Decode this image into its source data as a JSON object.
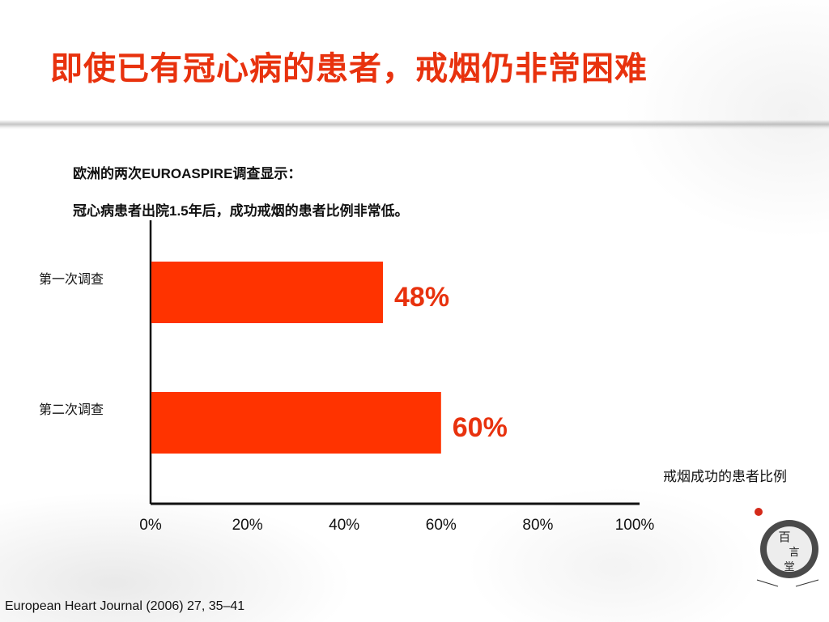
{
  "slide": {
    "title": "即使已有冠心病的患者，戒烟仍非常困难",
    "subtitle_line1": "欧洲的两次EUROASPIRE调查显示：",
    "subtitle_line2": "冠心病患者出院1.5年后，成功戒烟的患者比例非常低。",
    "citation": "European Heart Journal (2006) 27, 35–41",
    "logo_text": "百言堂"
  },
  "colors": {
    "accent": "#e8320e",
    "bar": "#ff3300",
    "axis": "#111111"
  },
  "chart_data": {
    "type": "bar",
    "orientation": "horizontal",
    "categories": [
      "第一次调查",
      "第二次调查"
    ],
    "values": [
      48,
      60
    ],
    "data_labels": [
      "48%",
      "60%"
    ],
    "xlabel": "戒烟成功的患者比例",
    "xlim": [
      0,
      100
    ],
    "xticks": [
      0,
      20,
      40,
      60,
      80,
      100
    ],
    "tick_labels": [
      "0%",
      "20%",
      "40%",
      "60%",
      "80%",
      "100%"
    ],
    "grid": false,
    "legend": false
  }
}
